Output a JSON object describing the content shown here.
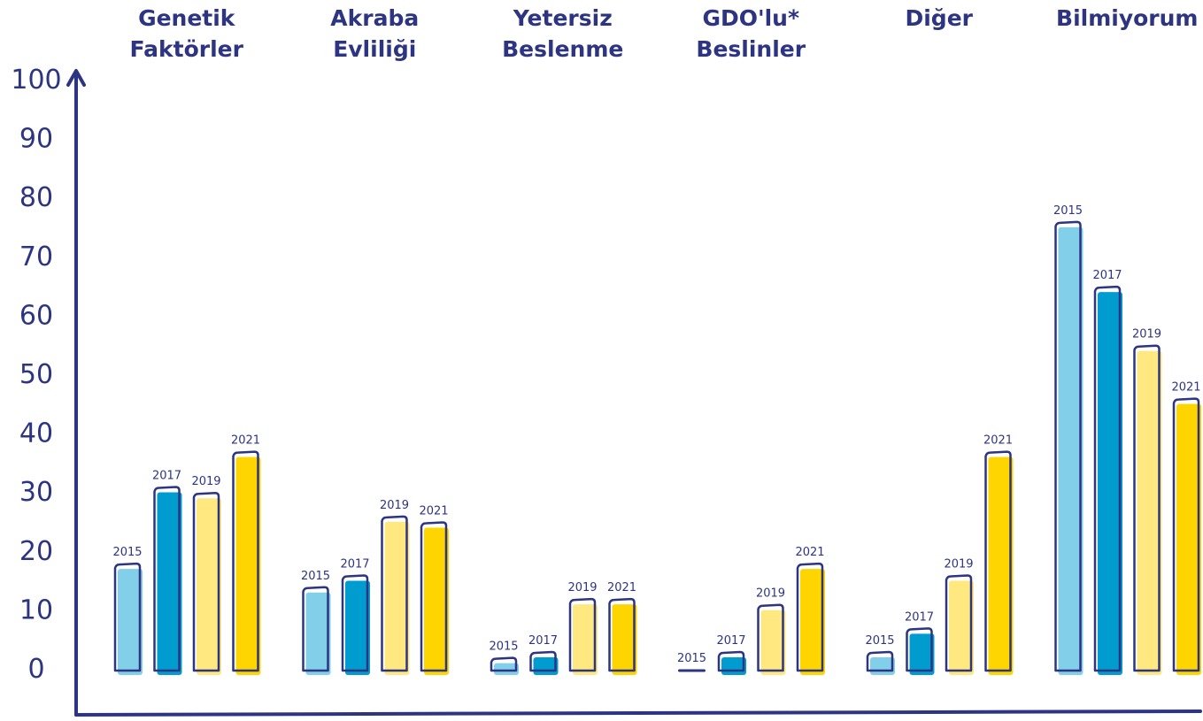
{
  "chart_data": {
    "type": "bar",
    "title": "",
    "xlabel": "",
    "ylabel": "",
    "ylim": [
      0,
      100
    ],
    "yticks": [
      "0",
      "10",
      "20",
      "30",
      "40",
      "50",
      "60",
      "70",
      "80",
      "90",
      "100"
    ],
    "grid": false,
    "categories": [
      {
        "line1": "Genetik",
        "line2": "Faktörler"
      },
      {
        "line1": "Akraba",
        "line2": "Evliliği"
      },
      {
        "line1": "Yetersiz",
        "line2": "Beslenme"
      },
      {
        "line1": "GDO'lu*",
        "line2": "Beslinler"
      },
      {
        "line1": "Diğer",
        "line2": ""
      },
      {
        "line1": "Bilmiyorum",
        "line2": ""
      }
    ],
    "series": [
      {
        "name": "2015",
        "color": "#82cfe9",
        "values": [
          18,
          14,
          2,
          0,
          3,
          76
        ]
      },
      {
        "name": "2017",
        "color": "#009cd0",
        "values": [
          31,
          16,
          3,
          3,
          7,
          65
        ]
      },
      {
        "name": "2019",
        "color": "#ffe87f",
        "values": [
          30,
          26,
          12,
          11,
          16,
          55
        ]
      },
      {
        "name": "2021",
        "color": "#ffd500",
        "values": [
          37,
          25,
          12,
          18,
          37,
          46
        ]
      }
    ]
  }
}
